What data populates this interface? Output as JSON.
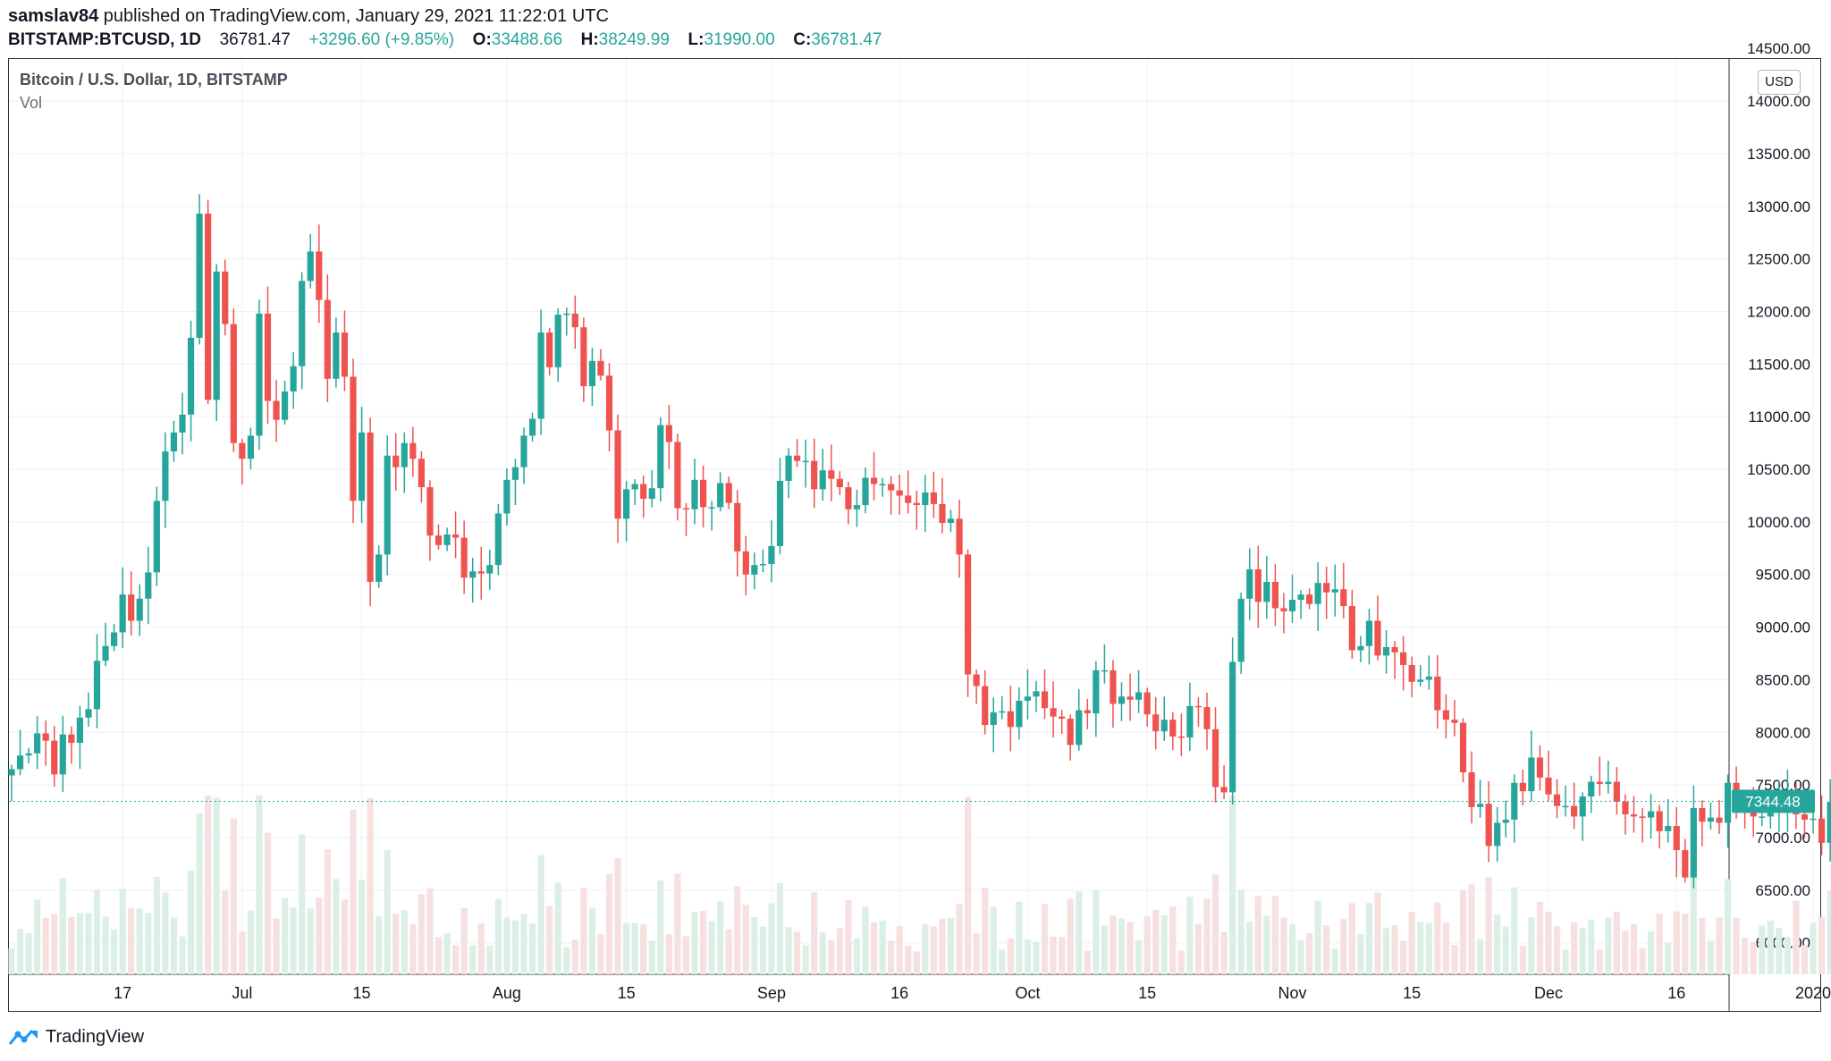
{
  "header": {
    "user": "samslav84",
    "published_text": "published on TradingView.com, January 29, 2021 11:22:01 UTC",
    "symbol": "BITSTAMP:BTCUSD, 1D",
    "last": "36781.47",
    "change": "+3296.60 (+9.85%)",
    "o_label": "O:",
    "o_val": "33488.66",
    "h_label": "H:",
    "h_val": "38249.99",
    "l_label": "L:",
    "l_val": "31990.00",
    "c_label": "C:",
    "c_val": "36781.47"
  },
  "legend": {
    "title": "Bitcoin / U.S. Dollar, 1D, BITSTAMP",
    "volume_label": "Vol"
  },
  "scale": {
    "currency": "USD",
    "last_price_label": "7344.48"
  },
  "footer": {
    "brand": "TradingView",
    "logo_icon": "tradingview-logo-icon"
  },
  "colors": {
    "up": "#26a69a",
    "down": "#ef5350",
    "vol_up": "#dcefe6",
    "vol_down": "#f6e0e0",
    "grid": "#eef1f4",
    "axis_text": "#131722"
  },
  "chart_data": {
    "type": "candlestick",
    "title": "Bitcoin / U.S. Dollar, 1D, BITSTAMP",
    "ylabel": "USD",
    "ylim": [
      5700,
      14400
    ],
    "grid": true,
    "y_ticks": [
      "6000.00",
      "6500.00",
      "7000.00",
      "7500.00",
      "8000.00",
      "8500.00",
      "9000.00",
      "9500.00",
      "10000.00",
      "10500.00",
      "11000.00",
      "11500.00",
      "12000.00",
      "12500.00",
      "13000.00",
      "13500.00",
      "14000.00"
    ],
    "x_ticks": [
      {
        "label": "17",
        "date": "2019-06-17"
      },
      {
        "label": "Jul",
        "date": "2019-07-01"
      },
      {
        "label": "15",
        "date": "2019-07-15"
      },
      {
        "label": "Aug",
        "date": "2019-08-01"
      },
      {
        "label": "15",
        "date": "2019-08-15"
      },
      {
        "label": "Sep",
        "date": "2019-09-01"
      },
      {
        "label": "16",
        "date": "2019-09-16"
      },
      {
        "label": "Oct",
        "date": "2019-10-01"
      },
      {
        "label": "15",
        "date": "2019-10-15"
      },
      {
        "label": "Nov",
        "date": "2019-11-01"
      },
      {
        "label": "15",
        "date": "2019-11-15"
      },
      {
        "label": "Dec",
        "date": "2019-12-01"
      },
      {
        "label": "16",
        "date": "2019-12-16"
      },
      {
        "label": "2020",
        "date": "2020-01-01"
      }
    ],
    "close_series": [
      {
        "date": "2019-06-04",
        "close": 7650
      },
      {
        "date": "2019-06-05",
        "close": 7780
      },
      {
        "date": "2019-06-06",
        "close": 7800
      },
      {
        "date": "2019-06-07",
        "close": 7990
      },
      {
        "date": "2019-06-08",
        "close": 7920
      },
      {
        "date": "2019-06-09",
        "close": 7600
      },
      {
        "date": "2019-06-10",
        "close": 7980
      },
      {
        "date": "2019-06-11",
        "close": 7900
      },
      {
        "date": "2019-06-12",
        "close": 8140
      },
      {
        "date": "2019-06-13",
        "close": 8220
      },
      {
        "date": "2019-06-14",
        "close": 8680
      },
      {
        "date": "2019-06-15",
        "close": 8820
      },
      {
        "date": "2019-06-16",
        "close": 8950
      },
      {
        "date": "2019-06-17",
        "close": 9310
      },
      {
        "date": "2019-06-18",
        "close": 9060
      },
      {
        "date": "2019-06-19",
        "close": 9270
      },
      {
        "date": "2019-06-20",
        "close": 9520
      },
      {
        "date": "2019-06-21",
        "close": 10200
      },
      {
        "date": "2019-06-22",
        "close": 10670
      },
      {
        "date": "2019-06-23",
        "close": 10850
      },
      {
        "date": "2019-06-24",
        "close": 11020
      },
      {
        "date": "2019-06-25",
        "close": 11750
      },
      {
        "date": "2019-06-26",
        "close": 12930
      },
      {
        "date": "2019-06-27",
        "close": 11160
      },
      {
        "date": "2019-06-28",
        "close": 12380
      },
      {
        "date": "2019-06-29",
        "close": 11880
      },
      {
        "date": "2019-06-30",
        "close": 10750
      },
      {
        "date": "2019-07-01",
        "close": 10600
      },
      {
        "date": "2019-07-02",
        "close": 10820
      },
      {
        "date": "2019-07-03",
        "close": 11980
      },
      {
        "date": "2019-07-04",
        "close": 11150
      },
      {
        "date": "2019-07-05",
        "close": 10970
      },
      {
        "date": "2019-07-06",
        "close": 11240
      },
      {
        "date": "2019-07-07",
        "close": 11480
      },
      {
        "date": "2019-07-08",
        "close": 12290
      },
      {
        "date": "2019-07-09",
        "close": 12570
      },
      {
        "date": "2019-07-10",
        "close": 12110
      },
      {
        "date": "2019-07-11",
        "close": 11360
      },
      {
        "date": "2019-07-12",
        "close": 11800
      },
      {
        "date": "2019-07-13",
        "close": 11380
      },
      {
        "date": "2019-07-14",
        "close": 10200
      },
      {
        "date": "2019-07-15",
        "close": 10850
      },
      {
        "date": "2019-07-16",
        "close": 9430
      },
      {
        "date": "2019-07-17",
        "close": 9690
      },
      {
        "date": "2019-07-18",
        "close": 10630
      },
      {
        "date": "2019-07-19",
        "close": 10520
      },
      {
        "date": "2019-07-20",
        "close": 10750
      },
      {
        "date": "2019-07-21",
        "close": 10600
      },
      {
        "date": "2019-07-22",
        "close": 10330
      },
      {
        "date": "2019-07-23",
        "close": 9870
      },
      {
        "date": "2019-07-24",
        "close": 9780
      },
      {
        "date": "2019-07-25",
        "close": 9880
      },
      {
        "date": "2019-07-26",
        "close": 9850
      },
      {
        "date": "2019-07-27",
        "close": 9470
      },
      {
        "date": "2019-07-28",
        "close": 9530
      },
      {
        "date": "2019-07-29",
        "close": 9510
      },
      {
        "date": "2019-07-30",
        "close": 9590
      },
      {
        "date": "2019-07-31",
        "close": 10080
      },
      {
        "date": "2019-08-01",
        "close": 10400
      },
      {
        "date": "2019-08-02",
        "close": 10520
      },
      {
        "date": "2019-08-03",
        "close": 10820
      },
      {
        "date": "2019-08-04",
        "close": 10980
      },
      {
        "date": "2019-08-05",
        "close": 11800
      },
      {
        "date": "2019-08-06",
        "close": 11470
      },
      {
        "date": "2019-08-07",
        "close": 11970
      },
      {
        "date": "2019-08-08",
        "close": 11980
      },
      {
        "date": "2019-08-09",
        "close": 11850
      },
      {
        "date": "2019-08-10",
        "close": 11290
      },
      {
        "date": "2019-08-11",
        "close": 11530
      },
      {
        "date": "2019-08-12",
        "close": 11390
      },
      {
        "date": "2019-08-13",
        "close": 10870
      },
      {
        "date": "2019-08-14",
        "close": 10030
      },
      {
        "date": "2019-08-15",
        "close": 10310
      },
      {
        "date": "2019-08-16",
        "close": 10360
      },
      {
        "date": "2019-08-17",
        "close": 10220
      },
      {
        "date": "2019-08-18",
        "close": 10320
      },
      {
        "date": "2019-08-19",
        "close": 10920
      },
      {
        "date": "2019-08-20",
        "close": 10760
      },
      {
        "date": "2019-08-21",
        "close": 10130
      },
      {
        "date": "2019-08-22",
        "close": 10120
      },
      {
        "date": "2019-08-23",
        "close": 10400
      },
      {
        "date": "2019-08-24",
        "close": 10140
      },
      {
        "date": "2019-08-25",
        "close": 10140
      },
      {
        "date": "2019-08-26",
        "close": 10370
      },
      {
        "date": "2019-08-27",
        "close": 10180
      },
      {
        "date": "2019-08-28",
        "close": 9720
      },
      {
        "date": "2019-08-29",
        "close": 9500
      },
      {
        "date": "2019-08-30",
        "close": 9590
      },
      {
        "date": "2019-08-31",
        "close": 9600
      },
      {
        "date": "2019-09-01",
        "close": 9770
      },
      {
        "date": "2019-09-02",
        "close": 10390
      },
      {
        "date": "2019-09-03",
        "close": 10630
      },
      {
        "date": "2019-09-04",
        "close": 10580
      },
      {
        "date": "2019-09-05",
        "close": 10580
      },
      {
        "date": "2019-09-06",
        "close": 10310
      },
      {
        "date": "2019-09-07",
        "close": 10490
      },
      {
        "date": "2019-09-08",
        "close": 10410
      },
      {
        "date": "2019-09-09",
        "close": 10330
      },
      {
        "date": "2019-09-10",
        "close": 10120
      },
      {
        "date": "2019-09-11",
        "close": 10160
      },
      {
        "date": "2019-09-12",
        "close": 10420
      },
      {
        "date": "2019-09-13",
        "close": 10360
      },
      {
        "date": "2019-09-14",
        "close": 10360
      },
      {
        "date": "2019-09-15",
        "close": 10300
      },
      {
        "date": "2019-09-16",
        "close": 10250
      },
      {
        "date": "2019-09-17",
        "close": 10180
      },
      {
        "date": "2019-09-18",
        "close": 10160
      },
      {
        "date": "2019-09-19",
        "close": 10280
      },
      {
        "date": "2019-09-20",
        "close": 10170
      },
      {
        "date": "2019-09-21",
        "close": 9990
      },
      {
        "date": "2019-09-22",
        "close": 10030
      },
      {
        "date": "2019-09-23",
        "close": 9690
      },
      {
        "date": "2019-09-24",
        "close": 8550
      },
      {
        "date": "2019-09-25",
        "close": 8440
      },
      {
        "date": "2019-09-26",
        "close": 8070
      },
      {
        "date": "2019-09-27",
        "close": 8190
      },
      {
        "date": "2019-09-28",
        "close": 8200
      },
      {
        "date": "2019-09-29",
        "close": 8050
      },
      {
        "date": "2019-09-30",
        "close": 8300
      },
      {
        "date": "2019-10-01",
        "close": 8340
      },
      {
        "date": "2019-10-02",
        "close": 8390
      },
      {
        "date": "2019-10-03",
        "close": 8230
      },
      {
        "date": "2019-10-04",
        "close": 8150
      },
      {
        "date": "2019-10-05",
        "close": 8130
      },
      {
        "date": "2019-10-06",
        "close": 7880
      },
      {
        "date": "2019-10-07",
        "close": 8210
      },
      {
        "date": "2019-10-08",
        "close": 8180
      },
      {
        "date": "2019-10-09",
        "close": 8590
      },
      {
        "date": "2019-10-10",
        "close": 8590
      },
      {
        "date": "2019-10-11",
        "close": 8270
      },
      {
        "date": "2019-10-12",
        "close": 8340
      },
      {
        "date": "2019-10-13",
        "close": 8310
      },
      {
        "date": "2019-10-14",
        "close": 8380
      },
      {
        "date": "2019-10-15",
        "close": 8170
      },
      {
        "date": "2019-10-16",
        "close": 8010
      },
      {
        "date": "2019-10-17",
        "close": 8120
      },
      {
        "date": "2019-10-18",
        "close": 7960
      },
      {
        "date": "2019-10-19",
        "close": 7950
      },
      {
        "date": "2019-10-20",
        "close": 8250
      },
      {
        "date": "2019-10-21",
        "close": 8240
      },
      {
        "date": "2019-10-22",
        "close": 8030
      },
      {
        "date": "2019-10-23",
        "close": 7480
      },
      {
        "date": "2019-10-24",
        "close": 7430
      },
      {
        "date": "2019-10-25",
        "close": 8670
      },
      {
        "date": "2019-10-26",
        "close": 9270
      },
      {
        "date": "2019-10-27",
        "close": 9550
      },
      {
        "date": "2019-10-28",
        "close": 9240
      },
      {
        "date": "2019-10-29",
        "close": 9430
      },
      {
        "date": "2019-10-30",
        "close": 9180
      },
      {
        "date": "2019-10-31",
        "close": 9150
      },
      {
        "date": "2019-11-01",
        "close": 9260
      },
      {
        "date": "2019-11-02",
        "close": 9310
      },
      {
        "date": "2019-11-03",
        "close": 9220
      },
      {
        "date": "2019-11-04",
        "close": 9420
      },
      {
        "date": "2019-11-05",
        "close": 9330
      },
      {
        "date": "2019-11-06",
        "close": 9360
      },
      {
        "date": "2019-11-07",
        "close": 9200
      },
      {
        "date": "2019-11-08",
        "close": 8780
      },
      {
        "date": "2019-11-09",
        "close": 8820
      },
      {
        "date": "2019-11-10",
        "close": 9060
      },
      {
        "date": "2019-11-11",
        "close": 8730
      },
      {
        "date": "2019-11-12",
        "close": 8810
      },
      {
        "date": "2019-11-13",
        "close": 8760
      },
      {
        "date": "2019-11-14",
        "close": 8640
      },
      {
        "date": "2019-11-15",
        "close": 8480
      },
      {
        "date": "2019-11-16",
        "close": 8500
      },
      {
        "date": "2019-11-17",
        "close": 8530
      },
      {
        "date": "2019-11-18",
        "close": 8210
      },
      {
        "date": "2019-11-19",
        "close": 8120
      },
      {
        "date": "2019-11-20",
        "close": 8090
      },
      {
        "date": "2019-11-21",
        "close": 7620
      },
      {
        "date": "2019-11-22",
        "close": 7290
      },
      {
        "date": "2019-11-23",
        "close": 7320
      },
      {
        "date": "2019-11-24",
        "close": 6920
      },
      {
        "date": "2019-11-25",
        "close": 7140
      },
      {
        "date": "2019-11-26",
        "close": 7170
      },
      {
        "date": "2019-11-27",
        "close": 7520
      },
      {
        "date": "2019-11-28",
        "close": 7440
      },
      {
        "date": "2019-11-29",
        "close": 7760
      },
      {
        "date": "2019-11-30",
        "close": 7570
      },
      {
        "date": "2019-12-01",
        "close": 7410
      },
      {
        "date": "2019-12-02",
        "close": 7300
      },
      {
        "date": "2019-12-03",
        "close": 7300
      },
      {
        "date": "2019-12-04",
        "close": 7200
      },
      {
        "date": "2019-12-05",
        "close": 7390
      },
      {
        "date": "2019-12-06",
        "close": 7530
      },
      {
        "date": "2019-12-07",
        "close": 7510
      },
      {
        "date": "2019-12-08",
        "close": 7530
      },
      {
        "date": "2019-12-09",
        "close": 7340
      },
      {
        "date": "2019-12-10",
        "close": 7220
      },
      {
        "date": "2019-12-11",
        "close": 7200
      },
      {
        "date": "2019-12-12",
        "close": 7190
      },
      {
        "date": "2019-12-13",
        "close": 7250
      },
      {
        "date": "2019-12-14",
        "close": 7060
      },
      {
        "date": "2019-12-15",
        "close": 7110
      },
      {
        "date": "2019-12-16",
        "close": 6880
      },
      {
        "date": "2019-12-17",
        "close": 6620
      },
      {
        "date": "2019-12-18",
        "close": 7280
      },
      {
        "date": "2019-12-19",
        "close": 7150
      },
      {
        "date": "2019-12-20",
        "close": 7190
      },
      {
        "date": "2019-12-21",
        "close": 7140
      },
      {
        "date": "2019-12-22",
        "close": 7520
      },
      {
        "date": "2019-12-23",
        "close": 7320
      },
      {
        "date": "2019-12-24",
        "close": 7250
      },
      {
        "date": "2019-12-25",
        "close": 7200
      },
      {
        "date": "2019-12-26",
        "close": 7200
      },
      {
        "date": "2019-12-27",
        "close": 7250
      },
      {
        "date": "2019-12-28",
        "close": 7300
      },
      {
        "date": "2019-12-29",
        "close": 7390
      },
      {
        "date": "2019-12-30",
        "close": 7220
      },
      {
        "date": "2019-12-31",
        "close": 7170
      },
      {
        "date": "2020-01-01",
        "close": 7180
      },
      {
        "date": "2020-01-02",
        "close": 6950
      },
      {
        "date": "2020-01-03",
        "close": 7340
      }
    ],
    "last_price": 7344.48
  }
}
